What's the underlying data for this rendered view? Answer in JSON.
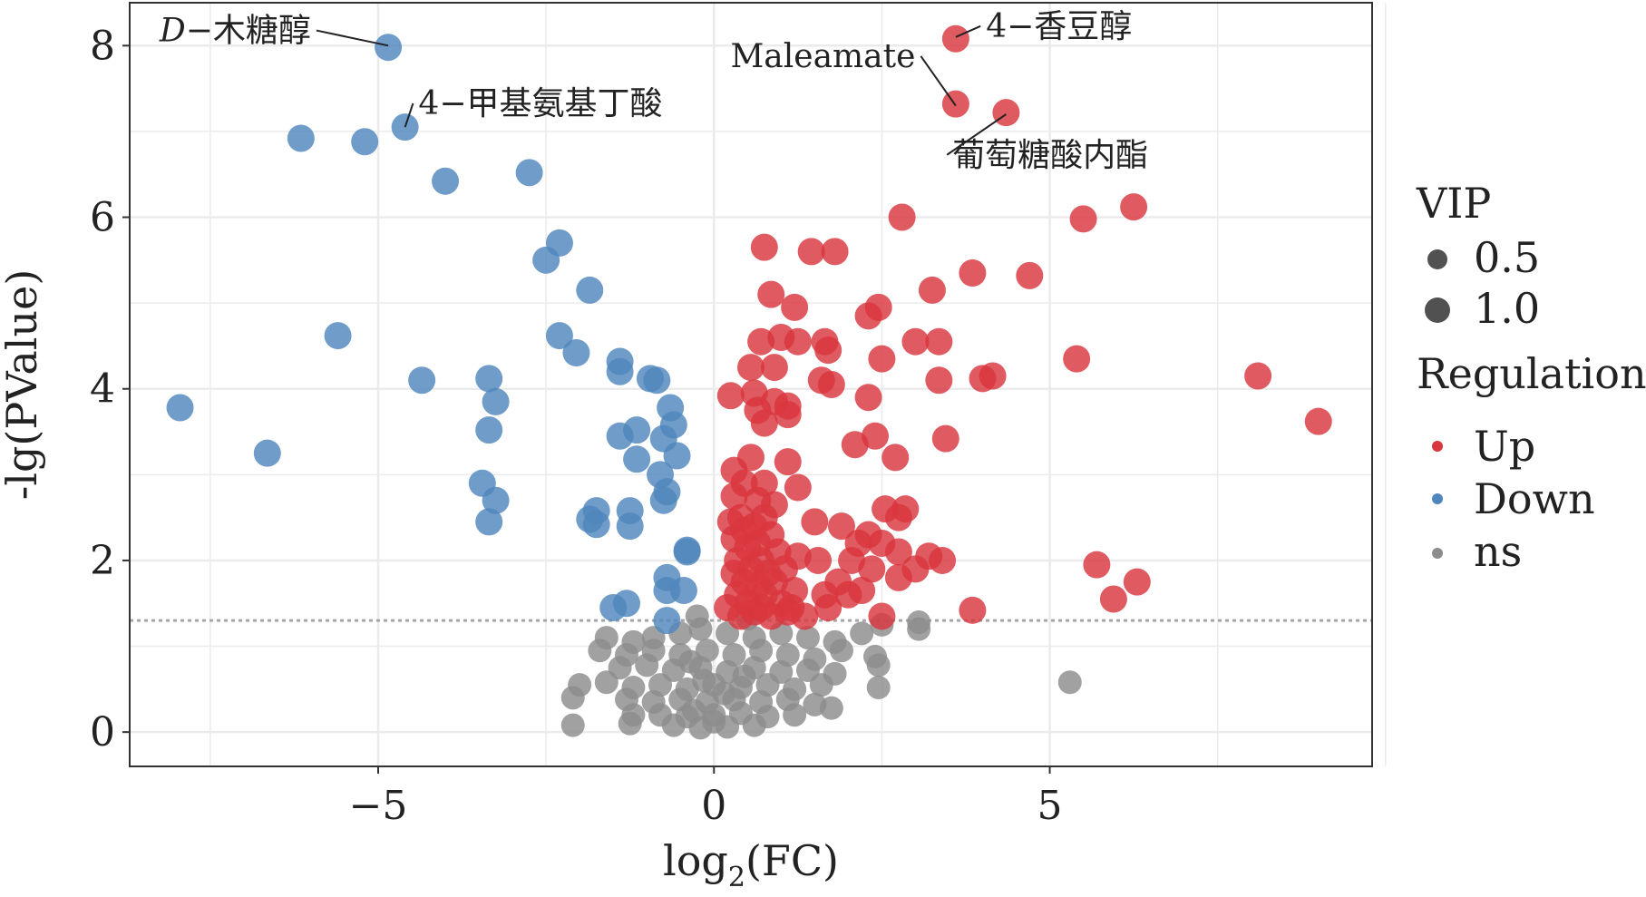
{
  "chart_data": {
    "type": "scatter",
    "title": "",
    "xlabel_main": "log",
    "xlabel_sub": "2",
    "xlabel_tail": "(FC)",
    "ylabel": "-lg(PValue)",
    "xlim": [
      -8.7,
      9.8
    ],
    "ylim": [
      -0.4,
      8.5
    ],
    "x_ticks": [
      -5,
      0,
      5
    ],
    "x_tick_labels": [
      "−5",
      "0",
      "5"
    ],
    "y_ticks": [
      0,
      2,
      4,
      6,
      8
    ],
    "y_tick_labels": [
      "0",
      "2",
      "4",
      "6",
      "8"
    ],
    "grid": true,
    "threshold_y": 1.3,
    "legend_position": "right",
    "legend": {
      "size_title": "VIP",
      "size_entries": [
        {
          "label": "0.5",
          "vip": 0.5
        },
        {
          "label": "1.0",
          "vip": 1.0
        }
      ],
      "color_title": "Regulation",
      "color_entries": [
        {
          "label": "Up",
          "key": "up"
        },
        {
          "label": "Down",
          "key": "down"
        },
        {
          "label": "ns",
          "key": "ns"
        }
      ]
    },
    "colors": {
      "up": "#d9363e",
      "down": "#4f86bc",
      "ns": "#8c8c8c"
    },
    "annotations": [
      {
        "label": "D−木糖醇",
        "prefix_italic": "D",
        "rest": "−木糖醇",
        "point": [
          -4.85,
          8.0
        ],
        "text_at": [
          -6.0,
          8.05
        ],
        "anchor": "end"
      },
      {
        "label": "4−甲基氨基丁酸",
        "point": [
          -4.6,
          7.05
        ],
        "text_at": [
          -4.4,
          7.2
        ],
        "anchor": "start"
      },
      {
        "label": "4−香豆醇",
        "point": [
          3.6,
          8.1
        ],
        "text_at": [
          4.05,
          8.1
        ],
        "anchor": "start"
      },
      {
        "label": "Maleamate",
        "point": [
          3.6,
          7.3
        ],
        "text_at": [
          3.0,
          7.75
        ],
        "anchor": "end"
      },
      {
        "label": "葡萄糖酸内酯",
        "point": [
          4.35,
          7.2
        ],
        "text_at": [
          3.55,
          6.6
        ],
        "anchor": "start"
      }
    ],
    "series": [
      {
        "name": "Up",
        "key": "up",
        "points": [
          [
            3.6,
            8.08
          ],
          [
            3.6,
            7.32
          ],
          [
            4.35,
            7.22
          ],
          [
            6.25,
            6.12
          ],
          [
            5.5,
            5.98
          ],
          [
            2.8,
            6.0
          ],
          [
            0.75,
            5.65
          ],
          [
            1.45,
            5.6
          ],
          [
            1.8,
            5.6
          ],
          [
            3.85,
            5.35
          ],
          [
            4.7,
            5.32
          ],
          [
            3.25,
            5.15
          ],
          [
            0.85,
            5.1
          ],
          [
            1.2,
            4.95
          ],
          [
            2.45,
            4.95
          ],
          [
            2.3,
            4.85
          ],
          [
            0.7,
            4.55
          ],
          [
            1.0,
            4.6
          ],
          [
            1.25,
            4.55
          ],
          [
            1.65,
            4.55
          ],
          [
            1.7,
            4.45
          ],
          [
            2.5,
            4.35
          ],
          [
            3.0,
            4.55
          ],
          [
            3.35,
            4.55
          ],
          [
            5.4,
            4.35
          ],
          [
            0.55,
            4.25
          ],
          [
            0.9,
            4.25
          ],
          [
            1.6,
            4.1
          ],
          [
            1.75,
            4.05
          ],
          [
            3.35,
            4.1
          ],
          [
            4.0,
            4.12
          ],
          [
            4.15,
            4.15
          ],
          [
            8.1,
            4.15
          ],
          [
            0.25,
            3.92
          ],
          [
            0.6,
            3.95
          ],
          [
            0.9,
            3.85
          ],
          [
            1.1,
            3.8
          ],
          [
            2.3,
            3.9
          ],
          [
            0.65,
            3.75
          ],
          [
            1.1,
            3.7
          ],
          [
            0.75,
            3.6
          ],
          [
            9.0,
            3.62
          ],
          [
            2.4,
            3.45
          ],
          [
            3.45,
            3.42
          ],
          [
            2.1,
            3.35
          ],
          [
            2.7,
            3.2
          ],
          [
            0.55,
            3.2
          ],
          [
            1.1,
            3.15
          ],
          [
            0.3,
            3.05
          ],
          [
            0.45,
            2.9
          ],
          [
            0.75,
            2.9
          ],
          [
            1.25,
            2.85
          ],
          [
            0.3,
            2.75
          ],
          [
            0.65,
            2.7
          ],
          [
            0.9,
            2.65
          ],
          [
            2.55,
            2.6
          ],
          [
            2.85,
            2.6
          ],
          [
            0.4,
            2.5
          ],
          [
            0.75,
            2.5
          ],
          [
            1.5,
            2.45
          ],
          [
            2.75,
            2.5
          ],
          [
            0.25,
            2.45
          ],
          [
            0.6,
            2.4
          ],
          [
            1.9,
            2.4
          ],
          [
            0.45,
            2.35
          ],
          [
            0.85,
            2.3
          ],
          [
            2.3,
            2.3
          ],
          [
            0.3,
            2.25
          ],
          [
            0.65,
            2.2
          ],
          [
            2.15,
            2.2
          ],
          [
            2.5,
            2.2
          ],
          [
            0.5,
            2.15
          ],
          [
            0.95,
            2.1
          ],
          [
            1.25,
            2.05
          ],
          [
            2.75,
            2.1
          ],
          [
            3.2,
            2.05
          ],
          [
            0.35,
            2.0
          ],
          [
            0.7,
            2.0
          ],
          [
            1.55,
            2.0
          ],
          [
            2.05,
            2.0
          ],
          [
            3.4,
            2.0
          ],
          [
            0.55,
            1.9
          ],
          [
            1.05,
            1.9
          ],
          [
            2.35,
            1.9
          ],
          [
            0.3,
            1.85
          ],
          [
            0.8,
            1.85
          ],
          [
            3.0,
            1.9
          ],
          [
            5.7,
            1.95
          ],
          [
            0.45,
            1.75
          ],
          [
            0.9,
            1.75
          ],
          [
            1.85,
            1.75
          ],
          [
            2.75,
            1.8
          ],
          [
            0.65,
            1.7
          ],
          [
            1.2,
            1.65
          ],
          [
            6.3,
            1.75
          ],
          [
            2.2,
            1.65
          ],
          [
            0.35,
            1.6
          ],
          [
            0.75,
            1.6
          ],
          [
            1.65,
            1.6
          ],
          [
            2.0,
            1.6
          ],
          [
            0.5,
            1.5
          ],
          [
            1.0,
            1.5
          ],
          [
            0.2,
            1.45
          ],
          [
            0.7,
            1.45
          ],
          [
            1.15,
            1.45
          ],
          [
            1.7,
            1.45
          ],
          [
            5.95,
            1.55
          ],
          [
            0.4,
            1.35
          ],
          [
            0.85,
            1.35
          ],
          [
            1.35,
            1.35
          ],
          [
            2.5,
            1.35
          ],
          [
            3.85,
            1.42
          ],
          [
            0.6,
            1.4
          ],
          [
            1.1,
            1.4
          ]
        ]
      },
      {
        "name": "Down",
        "key": "down",
        "points": [
          [
            -4.85,
            7.98
          ],
          [
            -4.6,
            7.05
          ],
          [
            -6.15,
            6.92
          ],
          [
            -5.2,
            6.88
          ],
          [
            -4.0,
            6.42
          ],
          [
            -2.75,
            6.52
          ],
          [
            -2.3,
            5.7
          ],
          [
            -2.5,
            5.5
          ],
          [
            -1.85,
            5.15
          ],
          [
            -5.6,
            4.62
          ],
          [
            -2.3,
            4.62
          ],
          [
            -2.05,
            4.42
          ],
          [
            -1.4,
            4.32
          ],
          [
            -1.4,
            4.2
          ],
          [
            -0.95,
            4.12
          ],
          [
            -0.85,
            4.1
          ],
          [
            -4.35,
            4.1
          ],
          [
            -3.35,
            4.12
          ],
          [
            -7.95,
            3.78
          ],
          [
            -3.25,
            3.85
          ],
          [
            -0.65,
            3.78
          ],
          [
            -0.6,
            3.58
          ],
          [
            -1.4,
            3.45
          ],
          [
            -1.15,
            3.52
          ],
          [
            -0.75,
            3.42
          ],
          [
            -3.35,
            3.52
          ],
          [
            -6.65,
            3.25
          ],
          [
            -0.55,
            3.22
          ],
          [
            -1.15,
            3.18
          ],
          [
            -0.8,
            3.0
          ],
          [
            -3.45,
            2.9
          ],
          [
            -3.25,
            2.7
          ],
          [
            -0.7,
            2.8
          ],
          [
            -0.75,
            2.7
          ],
          [
            -1.75,
            2.58
          ],
          [
            -1.25,
            2.58
          ],
          [
            -1.75,
            2.42
          ],
          [
            -1.85,
            2.48
          ],
          [
            -1.25,
            2.4
          ],
          [
            -3.35,
            2.45
          ],
          [
            -0.4,
            2.1
          ],
          [
            -0.4,
            2.12
          ],
          [
            -0.7,
            1.8
          ],
          [
            -0.45,
            1.65
          ],
          [
            -0.7,
            1.65
          ],
          [
            -1.5,
            1.45
          ],
          [
            -1.3,
            1.5
          ],
          [
            -0.7,
            1.3
          ]
        ]
      },
      {
        "name": "ns",
        "key": "ns",
        "points": [
          [
            3.05,
            1.28
          ],
          [
            2.5,
            1.25
          ],
          [
            3.05,
            1.2
          ],
          [
            -1.6,
            1.1
          ],
          [
            -1.2,
            1.05
          ],
          [
            -0.9,
            1.1
          ],
          [
            -0.5,
            1.15
          ],
          [
            -0.2,
            1.2
          ],
          [
            0.2,
            1.15
          ],
          [
            0.6,
            1.1
          ],
          [
            1.0,
            1.15
          ],
          [
            1.4,
            1.1
          ],
          [
            1.8,
            1.05
          ],
          [
            2.2,
            1.15
          ],
          [
            -1.7,
            0.95
          ],
          [
            -1.3,
            0.9
          ],
          [
            -0.9,
            0.95
          ],
          [
            -0.5,
            0.9
          ],
          [
            -0.1,
            0.95
          ],
          [
            0.3,
            0.9
          ],
          [
            0.7,
            0.95
          ],
          [
            1.1,
            0.9
          ],
          [
            1.5,
            0.85
          ],
          [
            1.9,
            0.95
          ],
          [
            2.4,
            0.88
          ],
          [
            -1.4,
            0.75
          ],
          [
            -1.0,
            0.78
          ],
          [
            -0.6,
            0.72
          ],
          [
            -0.2,
            0.75
          ],
          [
            0.2,
            0.7
          ],
          [
            0.6,
            0.75
          ],
          [
            1.0,
            0.7
          ],
          [
            1.4,
            0.72
          ],
          [
            1.8,
            0.68
          ],
          [
            2.45,
            0.78
          ],
          [
            -2.0,
            0.55
          ],
          [
            -1.6,
            0.58
          ],
          [
            -1.2,
            0.52
          ],
          [
            -0.8,
            0.55
          ],
          [
            -0.4,
            0.5
          ],
          [
            0.0,
            0.55
          ],
          [
            0.4,
            0.52
          ],
          [
            0.8,
            0.55
          ],
          [
            1.2,
            0.5
          ],
          [
            1.6,
            0.55
          ],
          [
            2.45,
            0.52
          ],
          [
            -2.1,
            0.4
          ],
          [
            -1.3,
            0.38
          ],
          [
            -0.9,
            0.35
          ],
          [
            -0.5,
            0.38
          ],
          [
            -0.1,
            0.35
          ],
          [
            0.3,
            0.38
          ],
          [
            0.7,
            0.35
          ],
          [
            1.1,
            0.38
          ],
          [
            1.5,
            0.32
          ],
          [
            1.75,
            0.28
          ],
          [
            -1.2,
            0.2
          ],
          [
            -0.8,
            0.2
          ],
          [
            -0.4,
            0.18
          ],
          [
            0.0,
            0.2
          ],
          [
            0.4,
            0.22
          ],
          [
            0.8,
            0.18
          ],
          [
            1.2,
            0.2
          ],
          [
            -1.25,
            0.1
          ],
          [
            -0.6,
            0.08
          ],
          [
            -0.2,
            0.05
          ],
          [
            0.2,
            0.06
          ],
          [
            0.6,
            0.08
          ],
          [
            -2.1,
            0.08
          ],
          [
            5.3,
            0.58
          ],
          [
            -0.25,
            1.35
          ],
          [
            0.5,
            1.32
          ],
          [
            0.0,
            0.12
          ],
          [
            -0.3,
            0.25
          ],
          [
            0.15,
            0.45
          ],
          [
            -0.15,
            0.6
          ],
          [
            0.45,
            0.65
          ],
          [
            -0.35,
            0.82
          ]
        ]
      }
    ]
  }
}
